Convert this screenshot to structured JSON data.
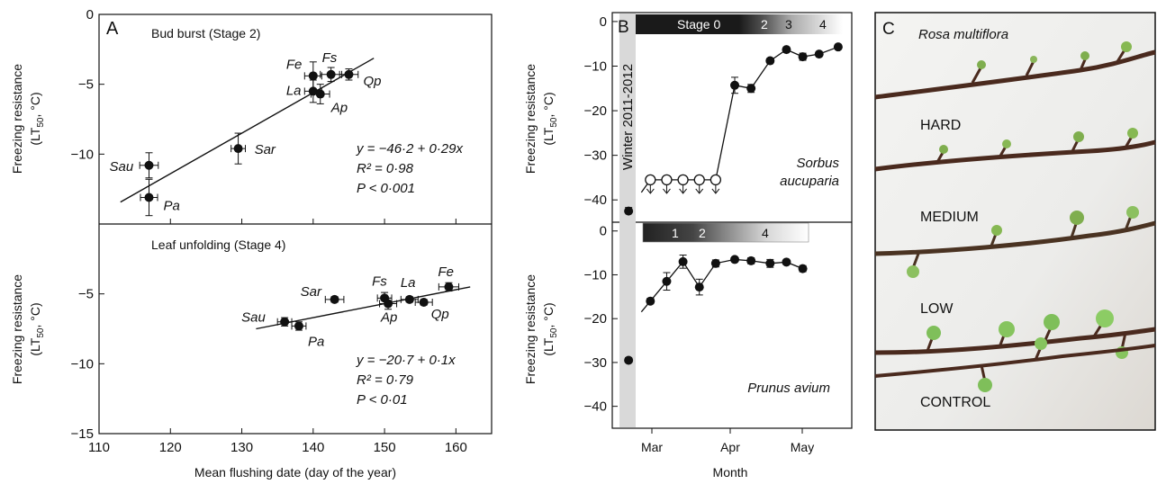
{
  "chart_data": [
    {
      "panel": "A",
      "type": "scatter",
      "subtitle": "Bud burst (Stage 2)",
      "xlabel": "Mean flushing date (day of the year)",
      "ylabel_line1": "Freezing resistance",
      "ylabel_line2": "(LT",
      "ylabel_sub": "50",
      "ylabel_tail": ", °C)",
      "xlim": [
        110,
        165
      ],
      "ylim": [
        -15,
        0
      ],
      "xticks": [
        110,
        120,
        130,
        140,
        150,
        160
      ],
      "yticks": [
        0,
        -5,
        -10
      ],
      "points": [
        {
          "label": "Sau",
          "x": 117,
          "y": -10.8,
          "xerr": 1.3,
          "yerr": 0.9
        },
        {
          "label": "Pa",
          "x": 117,
          "y": -13.1,
          "xerr": 1.2,
          "yerr": 1.3
        },
        {
          "label": "Sar",
          "x": 129.5,
          "y": -9.6,
          "xerr": 1.0,
          "yerr": 1.1
        },
        {
          "label": "Fe",
          "x": 140,
          "y": -4.4,
          "xerr": 1.2,
          "yerr": 1.0
        },
        {
          "label": "Fs",
          "x": 142.5,
          "y": -4.3,
          "xerr": 1.5,
          "yerr": 0.5
        },
        {
          "label": "Qp",
          "x": 145,
          "y": -4.3,
          "xerr": 1.3,
          "yerr": 0.4
        },
        {
          "label": "La",
          "x": 140,
          "y": -5.5,
          "xerr": 1.2,
          "yerr": 0.8
        },
        {
          "label": "Ap",
          "x": 141,
          "y": -5.7,
          "xerr": 1.3,
          "yerr": 0.7
        }
      ],
      "fit": {
        "intercept": -46.2,
        "slope": 0.29,
        "x_range": [
          113,
          148.5
        ]
      },
      "stats": {
        "equation": "y = −46·2 + 0·29x",
        "r2": "R² = 0·98",
        "p": "P < 0·001"
      }
    },
    {
      "panel": "A",
      "type": "scatter",
      "subtitle": "Leaf unfolding (Stage 4)",
      "xlabel": "Mean flushing date (day of the year)",
      "xlim": [
        110,
        165
      ],
      "ylim": [
        -15,
        0
      ],
      "xticks": [
        110,
        120,
        130,
        140,
        150,
        160
      ],
      "yticks": [
        -15,
        -10,
        -5
      ],
      "points": [
        {
          "label": "Sau",
          "x": 136,
          "y": -7.0,
          "xerr": 1.0,
          "yerr": 0.3
        },
        {
          "label": "Pa",
          "x": 138,
          "y": -7.3,
          "xerr": 1.0,
          "yerr": 0.3
        },
        {
          "label": "Sar",
          "x": 143,
          "y": -5.4,
          "xerr": 1.3,
          "yerr": 0.2
        },
        {
          "label": "Fs",
          "x": 150,
          "y": -5.3,
          "xerr": 1.0,
          "yerr": 0.4
        },
        {
          "label": "Ap",
          "x": 150.5,
          "y": -5.7,
          "xerr": 1.2,
          "yerr": 0.4
        },
        {
          "label": "La",
          "x": 153.5,
          "y": -5.4,
          "xerr": 1.2,
          "yerr": 0.2
        },
        {
          "label": "Qp",
          "x": 155.5,
          "y": -5.6,
          "xerr": 1.2,
          "yerr": 0.2
        },
        {
          "label": "Fe",
          "x": 159,
          "y": -4.5,
          "xerr": 1.4,
          "yerr": 0.3
        }
      ],
      "fit": {
        "intercept": -20.7,
        "slope": 0.1,
        "x_range": [
          132,
          162
        ]
      },
      "stats": {
        "equation": "y = −20·7 + 0·1x",
        "r2": "R² = 0·79",
        "p": "P < 0·01"
      }
    },
    {
      "panel": "B",
      "type": "line",
      "species": "Sorbus aucuparia",
      "species_line1": "Sorbus",
      "species_line2": "aucuparia",
      "winter_label": "Winter 2011-2012",
      "ylabel_line1": "Freezing resistance",
      "ylabel_line2": "(LT",
      "ylabel_sub": "50",
      "ylabel_tail": ", °C)",
      "ylim": [
        -45,
        2
      ],
      "yticks": [
        0,
        -10,
        -20,
        -30,
        -40
      ],
      "xticks": [
        "Mar",
        "Apr",
        "May"
      ],
      "xlabel": "Month",
      "stage_bar": {
        "labels": [
          "Stage 0",
          "2",
          "3",
          "4"
        ]
      },
      "winter_point": {
        "x": 0.1,
        "y": -42.5,
        "yerr": 0.8
      },
      "points": [
        {
          "x": 0.9,
          "y": -35.5,
          "open": true
        },
        {
          "x": 1.5,
          "y": -35.5,
          "open": true
        },
        {
          "x": 2.1,
          "y": -35.5,
          "open": true
        },
        {
          "x": 2.7,
          "y": -35.5,
          "open": true
        },
        {
          "x": 3.3,
          "y": -35.5,
          "open": true
        },
        {
          "x": 4.0,
          "y": -14.3,
          "yerr": 1.8
        },
        {
          "x": 4.6,
          "y": -15.0,
          "yerr": 0.9
        },
        {
          "x": 5.3,
          "y": -8.8,
          "yerr": 0.5
        },
        {
          "x": 5.9,
          "y": -6.3,
          "yerr": 0.4
        },
        {
          "x": 6.5,
          "y": -7.9,
          "yerr": 0.8
        },
        {
          "x": 7.1,
          "y": -7.3,
          "yerr": 0.4
        },
        {
          "x": 7.8,
          "y": -5.7,
          "yerr": 0.3
        }
      ]
    },
    {
      "panel": "B",
      "type": "line",
      "species": "Prunus avium",
      "ylabel_line1": "Freezing resistance",
      "ylabel_line2": "(LT",
      "ylabel_sub": "50",
      "ylabel_tail": ", °C)",
      "ylim": [
        -45,
        2
      ],
      "yticks": [
        0,
        -10,
        -20,
        -30,
        -40
      ],
      "xticks": [
        "Mar",
        "Apr",
        "May"
      ],
      "xlabel": "Month",
      "stage_bar": {
        "labels": [
          "1",
          "2",
          "4"
        ]
      },
      "winter_point": {
        "x": 0.1,
        "y": -29.5,
        "yerr": 0.6
      },
      "points": [
        {
          "x": 0.9,
          "y": -16.0,
          "yerr": 0.6
        },
        {
          "x": 1.5,
          "y": -11.5,
          "yerr": 2.0
        },
        {
          "x": 2.1,
          "y": -7.0,
          "yerr": 1.5
        },
        {
          "x": 2.7,
          "y": -12.8,
          "yerr": 1.8
        },
        {
          "x": 3.3,
          "y": -7.4,
          "yerr": 0.8
        },
        {
          "x": 4.0,
          "y": -6.5,
          "yerr": 0.5
        },
        {
          "x": 4.6,
          "y": -6.8,
          "yerr": 0.7
        },
        {
          "x": 5.3,
          "y": -7.4,
          "yerr": 0.9
        },
        {
          "x": 5.9,
          "y": -7.1,
          "yerr": 0.5
        },
        {
          "x": 6.5,
          "y": -8.6,
          "yerr": 0.7
        }
      ]
    }
  ],
  "panel_labels": {
    "a": "A",
    "b": "B",
    "c": "C"
  },
  "photo": {
    "title": "Rosa multiflora",
    "labels": [
      "HARD",
      "MEDIUM",
      "LOW",
      "CONTROL"
    ]
  }
}
